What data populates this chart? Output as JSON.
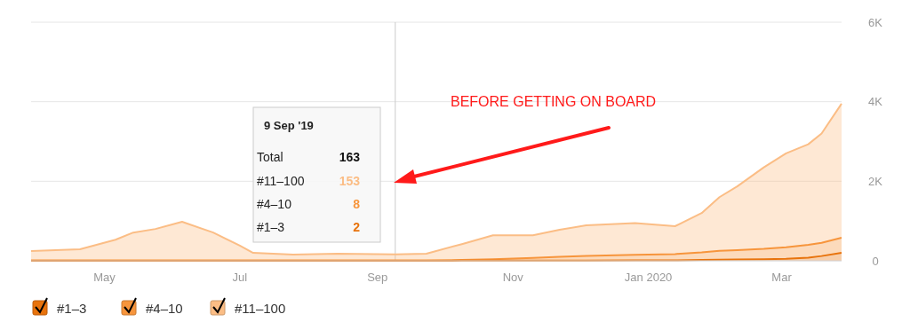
{
  "chart_data": {
    "type": "area",
    "stacked": true,
    "x": [
      "2019-03-29",
      "2019-04-20",
      "2019-05-06",
      "2019-05-14",
      "2019-05-24",
      "2019-06-05",
      "2019-06-19",
      "2019-07-01",
      "2019-07-07",
      "2019-07-25",
      "2019-08-14",
      "2019-09-09",
      "2019-09-23",
      "2019-10-09",
      "2019-10-23",
      "2019-11-10",
      "2019-11-22",
      "2019-12-04",
      "2019-12-26",
      "2020-01-13",
      "2020-01-25",
      "2020-02-02",
      "2020-02-10",
      "2020-02-22",
      "2020-03-03",
      "2020-03-13",
      "2020-03-19",
      "2020-03-28"
    ],
    "series": [
      {
        "name": "#1–3",
        "color": "#e8730c",
        "values": [
          2,
          2,
          2,
          2,
          2,
          2,
          2,
          2,
          2,
          2,
          2,
          2,
          2,
          3,
          4,
          5,
          6,
          8,
          10,
          12,
          20,
          30,
          35,
          40,
          50,
          80,
          120,
          200
        ]
      },
      {
        "name": "#4–10",
        "color": "#f7953c",
        "values": [
          8,
          8,
          8,
          8,
          8,
          8,
          8,
          8,
          8,
          8,
          8,
          8,
          10,
          17,
          36,
          65,
          94,
          112,
          140,
          158,
          190,
          220,
          235,
          260,
          290,
          320,
          330,
          380
        ]
      },
      {
        "name": "#11–100",
        "color": "#fbbd85",
        "values": [
          235,
          280,
          520,
          700,
          790,
          970,
          700,
          370,
          190,
          145,
          170,
          153,
          168,
          400,
          600,
          570,
          680,
          770,
          800,
          700,
          990,
          1350,
          1600,
          2050,
          2360,
          2530,
          2750,
          3370
        ]
      }
    ],
    "xlim": [
      "2019-03-29",
      "2020-03-28"
    ],
    "xticks": [
      {
        "value": "2019-05-01",
        "label": "May"
      },
      {
        "value": "2019-07-01",
        "label": "Jul"
      },
      {
        "value": "2019-09-01",
        "label": "Sep"
      },
      {
        "value": "2019-11-01",
        "label": "Nov"
      },
      {
        "value": "2020-01-01",
        "label": "Jan 2020"
      },
      {
        "value": "2020-03-01",
        "label": "Mar"
      }
    ],
    "ylim": [
      0,
      6000
    ],
    "yticks": [
      {
        "value": 0,
        "label": "0"
      },
      {
        "value": 2000,
        "label": "2K"
      },
      {
        "value": 4000,
        "label": "4K"
      },
      {
        "value": 6000,
        "label": "6K"
      }
    ],
    "grid": "y",
    "legend": "bottom left",
    "ref_lines": [
      {
        "axis": "x",
        "value": "2019-09-09",
        "color": "#cccccc"
      }
    ],
    "annotations": [
      "9 Sep '19",
      "Total",
      "163",
      "153",
      "8",
      "2",
      "BEFORE GETTING ON BOARD"
    ]
  }
}
